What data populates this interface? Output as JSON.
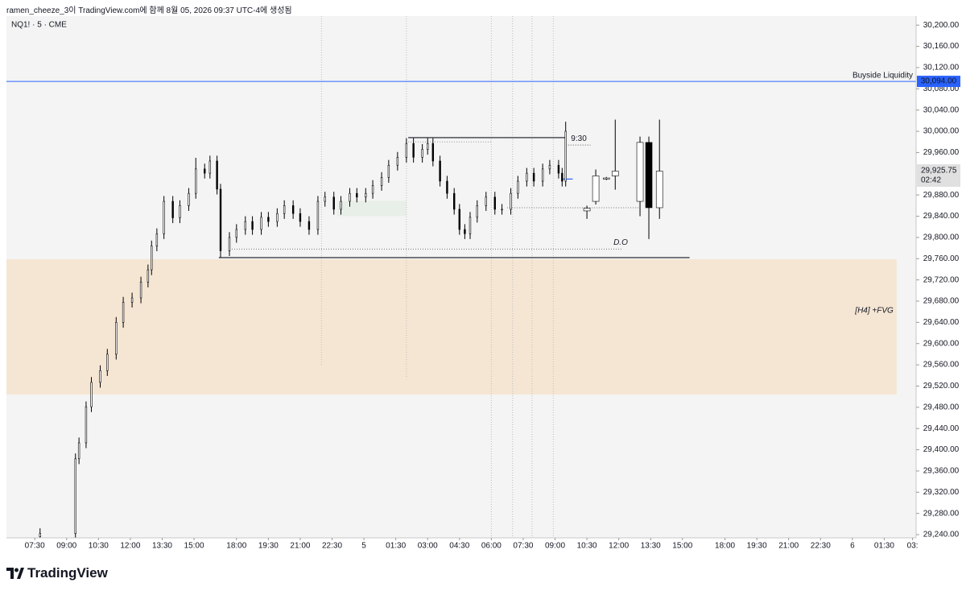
{
  "header": "ramen_cheeze_3이 TradingView.com에 함께 8월 05, 2026 09:37 UTC-4에 생성됨",
  "footer": {
    "logo": "TradingView"
  },
  "chart_data": {
    "type": "candlestick",
    "title": "NQ1! · 5 · CME",
    "xlim": [
      -16,
      498
    ],
    "ylim": [
      29234,
      30217
    ],
    "xticks": [
      {
        "value": 0,
        "label": "07:30"
      },
      {
        "value": 18,
        "label": "09:00"
      },
      {
        "value": 36,
        "label": "10:30"
      },
      {
        "value": 54,
        "label": "12:00"
      },
      {
        "value": 72,
        "label": "13:30"
      },
      {
        "value": 90,
        "label": "15:00"
      },
      {
        "value": 114,
        "label": "18:00"
      },
      {
        "value": 132,
        "label": "19:30"
      },
      {
        "value": 150,
        "label": "21:00"
      },
      {
        "value": 168,
        "label": "22:30"
      },
      {
        "value": 186,
        "label": "5"
      },
      {
        "value": 204,
        "label": "01:30"
      },
      {
        "value": 222,
        "label": "03:00"
      },
      {
        "value": 240,
        "label": "04:30"
      },
      {
        "value": 258,
        "label": "06:00"
      },
      {
        "value": 276,
        "label": "07:30"
      },
      {
        "value": 294,
        "label": "09:00"
      },
      {
        "value": 312,
        "label": "10:30"
      },
      {
        "value": 330,
        "label": "12:00"
      },
      {
        "value": 348,
        "label": "13:30"
      },
      {
        "value": 366,
        "label": "15:00"
      },
      {
        "value": 390,
        "label": "18:00"
      },
      {
        "value": 408,
        "label": "19:30"
      },
      {
        "value": 426,
        "label": "21:00"
      },
      {
        "value": 444,
        "label": "22:30"
      },
      {
        "value": 462,
        "label": "6"
      },
      {
        "value": 480,
        "label": "01:30"
      },
      {
        "value": 496,
        "label": "03:"
      }
    ],
    "yticks": [
      {
        "value": 30200,
        "label": "30,200.00"
      },
      {
        "value": 30160,
        "label": "30,160.00"
      },
      {
        "value": 30120,
        "label": "30,120.00"
      },
      {
        "value": 30080,
        "label": "30,080.00"
      },
      {
        "value": 30040,
        "label": "30,040.00"
      },
      {
        "value": 30000,
        "label": "30,000.00"
      },
      {
        "value": 29960,
        "label": "29,960.00"
      },
      {
        "value": 29880,
        "label": "29,880.00"
      },
      {
        "value": 29840,
        "label": "29,840.00"
      },
      {
        "value": 29800,
        "label": "29,800.00"
      },
      {
        "value": 29760,
        "label": "29,760.00"
      },
      {
        "value": 29720,
        "label": "29,720.00"
      },
      {
        "value": 29680,
        "label": "29,680.00"
      },
      {
        "value": 29640,
        "label": "29,640.00"
      },
      {
        "value": 29600,
        "label": "29,600.00"
      },
      {
        "value": 29560,
        "label": "29,560.00"
      },
      {
        "value": 29520,
        "label": "29,520.00"
      },
      {
        "value": 29480,
        "label": "29,480.00"
      },
      {
        "value": 29440,
        "label": "29,440.00"
      },
      {
        "value": 29400,
        "label": "29,400.00"
      },
      {
        "value": 29360,
        "label": "29,360.00"
      },
      {
        "value": 29320,
        "label": "29,320.00"
      },
      {
        "value": 29280,
        "label": "29,280.00"
      },
      {
        "value": 29240,
        "label": "29,240.00"
      }
    ],
    "grid": false,
    "up_color": "#ffffff",
    "down_color": "#000000",
    "candles": [
      {
        "x": [
          3,
          23,
          25,
          29,
          32,
          37,
          41,
          46,
          50,
          55,
          60,
          64,
          66,
          69,
          73,
          78,
          82,
          87,
          91,
          96,
          99,
          103,
          105,
          110,
          114,
          119,
          123,
          128,
          132,
          137,
          141,
          146,
          150,
          155,
          160,
          164,
          169,
          173,
          178,
          182,
          187,
          191,
          196,
          200,
          205,
          210,
          214,
          219,
          222,
          225,
          229,
          233,
          237,
          240,
          243,
          246,
          250,
          255,
          260,
          264,
          269,
          273,
          278,
          282,
          287,
          291,
          296,
          298,
          300
        ],
        "open": [
          29236,
          29242,
          29383,
          29413,
          29481,
          29527,
          29549,
          29580,
          29640,
          29678,
          29686,
          29716,
          29739,
          29784,
          29807,
          29868,
          29837,
          29860,
          29883,
          29929,
          29921,
          29944,
          29891,
          29775,
          29800,
          29815,
          29830,
          29815,
          29838,
          29830,
          29845,
          29860,
          29845,
          29830,
          29815,
          29868,
          29876,
          29853,
          29868,
          29883,
          29876,
          29883,
          29898,
          29913,
          29936,
          29951,
          29977,
          29951,
          29966,
          29977,
          29944,
          29906,
          29883,
          29853,
          29815,
          29807,
          29838,
          29860,
          29876,
          29853,
          29853,
          29883,
          29906,
          29921,
          29906,
          29929,
          29936,
          29921,
          29906
        ],
        "high": [
          29252,
          29393,
          29423,
          29491,
          29537,
          29559,
          29590,
          29650,
          29688,
          29696,
          29726,
          29749,
          29794,
          29817,
          29878,
          29878,
          29870,
          29893,
          29950,
          29939,
          29954,
          29954,
          29901,
          29810,
          29825,
          29840,
          29840,
          29848,
          29848,
          29855,
          29870,
          29870,
          29855,
          29840,
          29878,
          29886,
          29886,
          29878,
          29893,
          29893,
          29893,
          29908,
          29923,
          29946,
          29961,
          29987,
          29987,
          29976,
          29987,
          29987,
          29954,
          29916,
          29893,
          29863,
          29825,
          29848,
          29870,
          29886,
          29886,
          29863,
          29893,
          29916,
          29931,
          29931,
          29939,
          29946,
          29946,
          29931,
          30018
        ],
        "low": [
          29230,
          29232,
          29373,
          29403,
          29471,
          29517,
          29539,
          29570,
          29630,
          29668,
          29676,
          29706,
          29729,
          29774,
          29797,
          29827,
          29827,
          29850,
          29873,
          29911,
          29911,
          29881,
          29762,
          29765,
          29790,
          29805,
          29805,
          29805,
          29820,
          29820,
          29835,
          29835,
          29820,
          29805,
          29805,
          29858,
          29843,
          29843,
          29858,
          29866,
          29866,
          29873,
          29888,
          29903,
          29926,
          29941,
          29941,
          29941,
          29956,
          29934,
          29896,
          29873,
          29843,
          29805,
          29797,
          29797,
          29828,
          29850,
          29843,
          29843,
          29843,
          29873,
          29896,
          29896,
          29896,
          29919,
          29911,
          29896,
          29896
        ],
        "close": [
          29242,
          29383,
          29413,
          29481,
          29527,
          29549,
          29580,
          29640,
          29678,
          29686,
          29716,
          29739,
          29784,
          29807,
          29868,
          29837,
          29860,
          29883,
          29929,
          29921,
          29944,
          29891,
          29775,
          29800,
          29815,
          29830,
          29815,
          29838,
          29830,
          29845,
          29860,
          29845,
          29830,
          29815,
          29868,
          29876,
          29853,
          29868,
          29883,
          29876,
          29883,
          29898,
          29913,
          29936,
          29951,
          29977,
          29951,
          29966,
          29977,
          29944,
          29906,
          29883,
          29853,
          29815,
          29807,
          29838,
          29860,
          29876,
          29853,
          29853,
          29883,
          29906,
          29921,
          29906,
          29929,
          29936,
          29921,
          29906,
          30000
        ]
      },
      {
        "x": [
          312,
          317,
          323,
          328,
          342,
          347,
          353
        ],
        "open": [
          29850,
          29868,
          29910,
          29916,
          29868,
          29979,
          29856
        ],
        "high": [
          29860,
          29928,
          29914,
          30022,
          29990,
          29990,
          30022
        ],
        "low": [
          29835,
          29862,
          29908,
          29890,
          29840,
          29797,
          29835
        ],
        "close": [
          29855,
          29916,
          29912,
          29925,
          29979,
          29856,
          29925
        ]
      }
    ],
    "buyside": {
      "label": "Buyside Liquidity",
      "price": {
        "value": 30094,
        "label": "30,094.00"
      },
      "color": "#2962ff"
    },
    "last_price": {
      "value": 29925.75,
      "label": "29,925.75",
      "countdown": "02:42"
    },
    "fvg": {
      "label": "[H4] +FVG",
      "top": 29759,
      "bottom": 29504,
      "x": [
        -16,
        487
      ],
      "color": "#f5e6d3"
    },
    "zone": {
      "top": 29869,
      "bottom": 29840,
      "x": [
        171,
        210
      ],
      "color": "#e8efe8"
    },
    "lines": [
      {
        "y": 29988,
        "x": [
          211,
          300
        ],
        "style": "solid",
        "color": "#131722"
      },
      {
        "y": 29980,
        "x": [
          211,
          258
        ],
        "style": "dotted",
        "color": "#999999"
      },
      {
        "y": 29974,
        "x": [
          300,
          314
        ],
        "style": "dotted",
        "color": "#555555"
      },
      {
        "y": 29910,
        "x": [
          298,
          304
        ],
        "style": "solid",
        "color": "#2962ff"
      },
      {
        "y": 29856,
        "x": [
          267,
          342
        ],
        "style": "dotted",
        "color": "#777777"
      },
      {
        "y": 29778,
        "x": [
          110,
          332
        ],
        "style": "dotted",
        "color": "#777777"
      },
      {
        "y": 29762,
        "x": [
          104,
          370
        ],
        "style": "solid",
        "color": "#131722"
      }
    ],
    "texts": [
      {
        "text": "9:30",
        "x": 303,
        "y": 29986
      },
      {
        "text": "D.O",
        "x": 327,
        "y": 29790
      }
    ],
    "sessions": [
      {
        "x": 162,
        "bottom": 29557
      },
      {
        "x": 210,
        "bottom": 29534
      },
      {
        "x": 258,
        "bottom": 29234
      },
      {
        "x": 270,
        "bottom": 29234
      },
      {
        "x": 281,
        "bottom": 29234
      },
      {
        "x": 293,
        "bottom": 29234
      }
    ]
  }
}
